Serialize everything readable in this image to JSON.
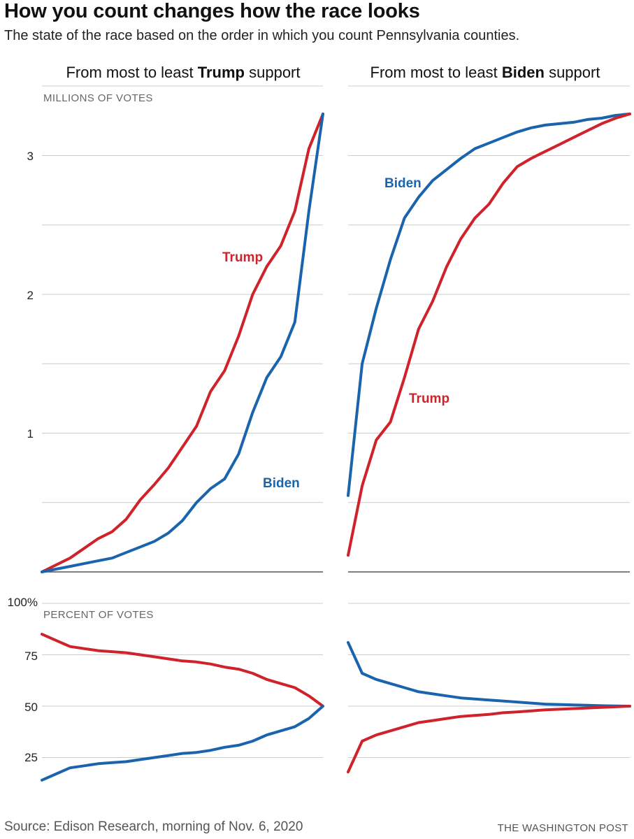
{
  "title": "How you count changes how the race looks",
  "subtitle": "The state of the race based on the order in which you count Pennsylvania counties.",
  "source": "Source: Edison Research, morning of Nov. 6, 2020",
  "credit": "THE WASHINGTON POST",
  "colors": {
    "trump": "#d0222b",
    "biden": "#1a64ad",
    "grid": "#cccccc",
    "axis": "#555555"
  },
  "panels": {
    "left": {
      "title_prefix": "From most to least ",
      "title_bold": "Trump",
      "title_suffix": " support"
    },
    "right": {
      "title_prefix": "From most to least ",
      "title_bold": "Biden",
      "title_suffix": " support"
    }
  },
  "top_section": {
    "label": "MILLIONS OF VOTES",
    "ticks": [
      "1",
      "2",
      "3"
    ]
  },
  "bottom_section": {
    "label": "PERCENT OF VOTES",
    "ticks": [
      "25",
      "50",
      "75",
      "100%"
    ]
  },
  "chart_data": [
    {
      "type": "line",
      "title": "From most to least Trump support",
      "ylabel": "MILLIONS OF VOTES",
      "xlabel": "",
      "ylim": [
        0,
        3.3
      ],
      "yticks": [
        1,
        2,
        3
      ],
      "gridlines": [
        0.5,
        1,
        1.5,
        2,
        2.5,
        3
      ],
      "x": [
        0,
        0.05,
        0.1,
        0.15,
        0.2,
        0.25,
        0.3,
        0.35,
        0.4,
        0.45,
        0.5,
        0.55,
        0.6,
        0.65,
        0.7,
        0.75,
        0.8,
        0.85,
        0.9,
        0.95,
        1.0
      ],
      "series": [
        {
          "name": "Trump",
          "label_text": "Trump",
          "values": [
            0,
            0.05,
            0.1,
            0.17,
            0.24,
            0.29,
            0.38,
            0.52,
            0.63,
            0.75,
            0.9,
            1.05,
            1.3,
            1.45,
            1.7,
            2.0,
            2.2,
            2.35,
            2.6,
            3.05,
            3.3
          ]
        },
        {
          "name": "Biden",
          "label_text": "Biden",
          "values": [
            0,
            0.02,
            0.04,
            0.06,
            0.08,
            0.1,
            0.14,
            0.18,
            0.22,
            0.28,
            0.37,
            0.5,
            0.6,
            0.67,
            0.85,
            1.15,
            1.4,
            1.55,
            1.8,
            2.6,
            3.3
          ]
        }
      ]
    },
    {
      "type": "line",
      "title": "From most to least Biden support",
      "ylabel": "MILLIONS OF VOTES",
      "xlabel": "",
      "ylim": [
        0,
        3.3
      ],
      "yticks": [
        1,
        2,
        3
      ],
      "gridlines": [
        0.5,
        1,
        1.5,
        2,
        2.5,
        3
      ],
      "x": [
        0,
        0.05,
        0.1,
        0.15,
        0.2,
        0.25,
        0.3,
        0.35,
        0.4,
        0.45,
        0.5,
        0.55,
        0.6,
        0.65,
        0.7,
        0.75,
        0.8,
        0.85,
        0.9,
        0.95,
        1.0
      ],
      "series": [
        {
          "name": "Biden",
          "label_text": "Biden",
          "values": [
            0.55,
            1.5,
            1.9,
            2.25,
            2.55,
            2.7,
            2.82,
            2.9,
            2.98,
            3.05,
            3.09,
            3.13,
            3.17,
            3.2,
            3.22,
            3.23,
            3.24,
            3.26,
            3.27,
            3.29,
            3.3
          ]
        },
        {
          "name": "Trump",
          "label_text": "Trump",
          "values": [
            0.12,
            0.62,
            0.95,
            1.08,
            1.4,
            1.75,
            1.95,
            2.2,
            2.4,
            2.55,
            2.65,
            2.8,
            2.92,
            2.98,
            3.03,
            3.08,
            3.13,
            3.18,
            3.23,
            3.27,
            3.3
          ]
        }
      ]
    },
    {
      "type": "line",
      "title": "From most to least Trump support",
      "ylabel": "PERCENT OF VOTES",
      "xlabel": "",
      "ylim": [
        0,
        100
      ],
      "yticks": [
        25,
        50,
        75,
        100
      ],
      "gridlines": [
        25,
        50,
        75,
        100
      ],
      "x": [
        0,
        0.05,
        0.1,
        0.15,
        0.2,
        0.25,
        0.3,
        0.35,
        0.4,
        0.45,
        0.5,
        0.55,
        0.6,
        0.65,
        0.7,
        0.75,
        0.8,
        0.85,
        0.9,
        0.95,
        1.0
      ],
      "series": [
        {
          "name": "Trump",
          "values": [
            85,
            82,
            79,
            78,
            77,
            76.5,
            76,
            75,
            74,
            73,
            72,
            71.5,
            70.5,
            69,
            68,
            66,
            63,
            61,
            59,
            55,
            50
          ]
        },
        {
          "name": "Biden",
          "values": [
            14,
            17,
            20,
            21,
            22,
            22.5,
            23,
            24,
            25,
            26,
            27,
            27.5,
            28.5,
            30,
            31,
            33,
            36,
            38,
            40,
            44,
            50
          ]
        }
      ]
    },
    {
      "type": "line",
      "title": "From most to least Biden support",
      "ylabel": "PERCENT OF VOTES",
      "xlabel": "",
      "ylim": [
        0,
        100
      ],
      "yticks": [
        25,
        50,
        75,
        100
      ],
      "gridlines": [
        25,
        50,
        75,
        100
      ],
      "x": [
        0,
        0.05,
        0.1,
        0.15,
        0.2,
        0.25,
        0.3,
        0.35,
        0.4,
        0.45,
        0.5,
        0.55,
        0.6,
        0.65,
        0.7,
        0.75,
        0.8,
        0.85,
        0.9,
        0.95,
        1.0
      ],
      "series": [
        {
          "name": "Biden",
          "values": [
            81,
            66,
            63,
            61,
            59,
            57,
            56,
            55,
            54,
            53.5,
            53,
            52.5,
            52,
            51.5,
            51,
            50.8,
            50.6,
            50.4,
            50.2,
            50.1,
            50
          ]
        },
        {
          "name": "Trump",
          "values": [
            18,
            33,
            36,
            38,
            40,
            42,
            43,
            44,
            45,
            45.5,
            46,
            46.8,
            47.2,
            47.7,
            48.2,
            48.5,
            48.8,
            49.1,
            49.4,
            49.7,
            50
          ]
        }
      ]
    }
  ]
}
